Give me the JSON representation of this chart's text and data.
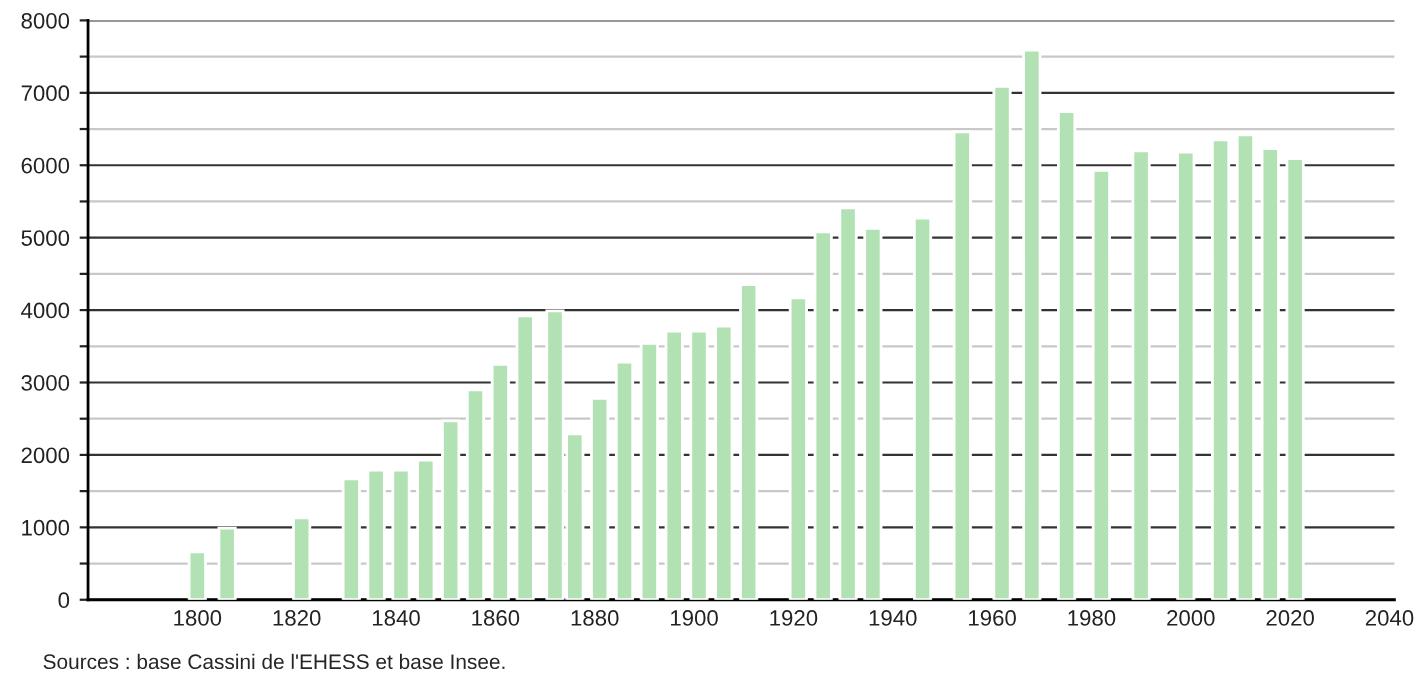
{
  "chart_data": {
    "type": "bar",
    "x": [
      1800,
      1806,
      1821,
      1831,
      1836,
      1841,
      1846,
      1851,
      1856,
      1861,
      1866,
      1872,
      1876,
      1881,
      1886,
      1891,
      1896,
      1901,
      1906,
      1911,
      1921,
      1926,
      1931,
      1936,
      1946,
      1954,
      1962,
      1968,
      1975,
      1982,
      1990,
      1999,
      2006,
      2011,
      2016,
      2021
    ],
    "values": [
      660,
      990,
      1130,
      1670,
      1790,
      1790,
      1930,
      2470,
      2900,
      3250,
      3920,
      3990,
      2290,
      2780,
      3280,
      3540,
      3710,
      3710,
      3780,
      4350,
      4170,
      5080,
      5410,
      5130,
      5270,
      6460,
      7090,
      7590,
      6740,
      5930,
      6200,
      6180,
      6350,
      6420,
      6230,
      6090
    ],
    "color": "#b2e2b4",
    "xlim": [
      1778,
      2041
    ],
    "xticks": [
      1800,
      1820,
      1840,
      1860,
      1880,
      1900,
      1920,
      1940,
      1960,
      1980,
      2000,
      2020,
      2040
    ],
    "ylim": [
      0,
      8000
    ],
    "yticks": [
      0,
      {
        "value": 500,
        "label": null
      },
      1000,
      {
        "value": 1500,
        "label": null
      },
      2000,
      {
        "value": 2500,
        "label": null
      },
      3000,
      {
        "value": 3500,
        "label": null
      },
      4000,
      {
        "value": 4500,
        "label": null
      },
      5000,
      {
        "value": 5500,
        "label": null
      },
      6000,
      {
        "value": 6500,
        "label": null
      },
      7000,
      {
        "value": 7500,
        "label": null
      },
      8000
    ],
    "grid": "y",
    "annotations": [
      "Sources : base Cassini de l'EHESS et base Insee."
    ]
  }
}
